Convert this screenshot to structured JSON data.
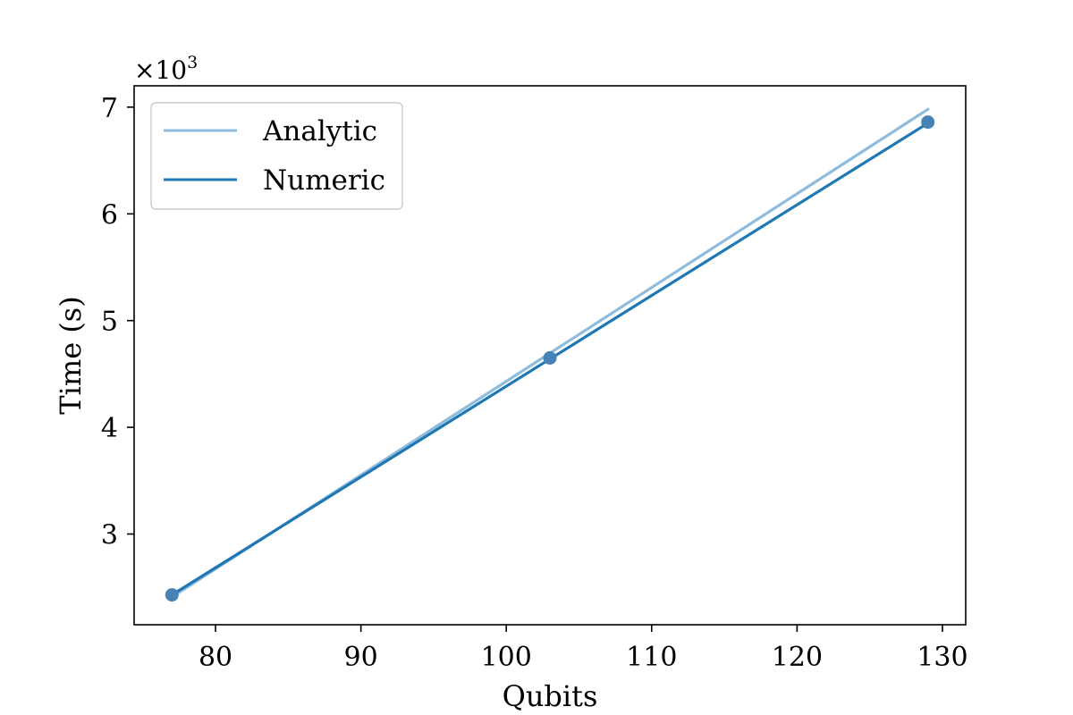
{
  "chart_data": {
    "type": "line",
    "xlabel": "Qubits",
    "ylabel": "Time (s)",
    "y_offset_label": "×10",
    "y_offset_exponent": "3",
    "xlim": [
      74.4,
      131.6
    ],
    "ylim": [
      2.15,
      7.2
    ],
    "x_ticks": [
      80,
      90,
      100,
      110,
      120,
      130
    ],
    "y_ticks": [
      3,
      4,
      5,
      6,
      7
    ],
    "grid": false,
    "legend_position": "top-left",
    "series": [
      {
        "name": "Analytic",
        "color": "#8fbcdd",
        "x": [
          77,
          129
        ],
        "y": [
          2.41,
          6.98
        ],
        "markers": false
      },
      {
        "name": "Numeric",
        "color": "#1f77b4",
        "x": [
          77,
          103,
          129
        ],
        "y": [
          2.43,
          4.64,
          6.85
        ],
        "markers": false
      }
    ],
    "points": {
      "color": "#4682b4",
      "x": [
        77,
        103,
        129
      ],
      "y": [
        2.43,
        4.65,
        6.86
      ]
    }
  }
}
